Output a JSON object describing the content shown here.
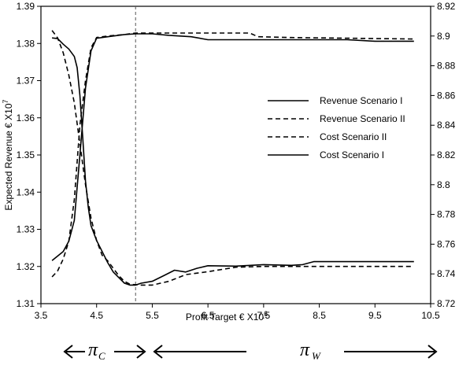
{
  "chart_data": {
    "type": "line",
    "xlabel": "Profit Target € X10",
    "xlabel_sup": "6",
    "ylabel": "Expected Revenue € X10",
    "ylabel_sup": "7",
    "xlim": [
      3.5,
      10.5
    ],
    "ylim_left": [
      1.31,
      1.39
    ],
    "ylim_right": [
      8.72,
      8.92
    ],
    "x_ticks": [
      "3.5",
      "4.5",
      "5.5",
      "6.5",
      "7.5",
      "8.5",
      "9.5",
      "10.5"
    ],
    "y_left_ticks": [
      "1.31",
      "1.32",
      "1.33",
      "1.34",
      "1.35",
      "1.36",
      "1.37",
      "1.38",
      "1.39"
    ],
    "y_right_ticks": [
      "8.72",
      "8.74",
      "8.76",
      "8.78",
      "8.8",
      "8.82",
      "8.84",
      "8.86",
      "8.88",
      "8.9",
      "8.92"
    ],
    "vline_x": 5.2,
    "grid": false,
    "legend_position": "right-middle",
    "region_labels": [
      {
        "symbol": "π",
        "sub": "C"
      },
      {
        "symbol": "π",
        "sub": "W"
      }
    ],
    "series": [
      {
        "name": "Revenue Scenario I",
        "axis": "left",
        "style": "solid",
        "points": [
          [
            3.7,
            1.3815
          ],
          [
            3.8,
            1.3813
          ],
          [
            3.9,
            1.3798
          ],
          [
            4.0,
            1.3785
          ],
          [
            4.1,
            1.3765
          ],
          [
            4.15,
            1.3735
          ],
          [
            4.2,
            1.366
          ],
          [
            4.25,
            1.355
          ],
          [
            4.3,
            1.343
          ],
          [
            4.35,
            1.336
          ],
          [
            4.4,
            1.331
          ],
          [
            4.5,
            1.327
          ],
          [
            4.6,
            1.324
          ],
          [
            4.7,
            1.321
          ],
          [
            4.8,
            1.3185
          ],
          [
            4.9,
            1.317
          ],
          [
            5.0,
            1.3155
          ],
          [
            5.1,
            1.315
          ],
          [
            5.2,
            1.315
          ],
          [
            5.3,
            1.3155
          ],
          [
            5.5,
            1.316
          ],
          [
            5.7,
            1.3175
          ],
          [
            5.9,
            1.319
          ],
          [
            6.1,
            1.3185
          ],
          [
            6.3,
            1.3195
          ],
          [
            6.5,
            1.3202
          ],
          [
            7.0,
            1.3201
          ],
          [
            7.5,
            1.3205
          ],
          [
            8.0,
            1.3203
          ],
          [
            8.2,
            1.3205
          ],
          [
            8.4,
            1.3213
          ],
          [
            9.0,
            1.3213
          ],
          [
            10.2,
            1.3213
          ]
        ]
      },
      {
        "name": "Revenue Scenario II",
        "axis": "left",
        "style": "dashed",
        "points": [
          [
            3.7,
            1.3835
          ],
          [
            3.8,
            1.3815
          ],
          [
            3.9,
            1.3775
          ],
          [
            4.0,
            1.3715
          ],
          [
            4.1,
            1.364
          ],
          [
            4.2,
            1.353
          ],
          [
            4.3,
            1.342
          ],
          [
            4.4,
            1.333
          ],
          [
            4.5,
            1.327
          ],
          [
            4.6,
            1.323
          ],
          [
            4.7,
            1.3215
          ],
          [
            4.8,
            1.3195
          ],
          [
            4.9,
            1.3175
          ],
          [
            5.0,
            1.316
          ],
          [
            5.1,
            1.3152
          ],
          [
            5.3,
            1.315
          ],
          [
            5.5,
            1.315
          ],
          [
            5.8,
            1.316
          ],
          [
            6.1,
            1.3178
          ],
          [
            6.5,
            1.3186
          ],
          [
            7.0,
            1.3198
          ],
          [
            7.5,
            1.32
          ],
          [
            10.2,
            1.32
          ]
        ]
      },
      {
        "name": "Cost Scenario II",
        "axis": "right",
        "style": "dashed",
        "points": [
          [
            3.7,
            8.738
          ],
          [
            3.8,
            8.742
          ],
          [
            3.9,
            8.75
          ],
          [
            4.0,
            8.762
          ],
          [
            4.1,
            8.79
          ],
          [
            4.2,
            8.84
          ],
          [
            4.3,
            8.87
          ],
          [
            4.4,
            8.892
          ],
          [
            4.5,
            8.899
          ],
          [
            4.7,
            8.9
          ],
          [
            5.0,
            8.901
          ],
          [
            5.2,
            8.902
          ],
          [
            6.0,
            8.902
          ],
          [
            7.0,
            8.902
          ],
          [
            7.25,
            8.902
          ],
          [
            7.4,
            8.8995
          ],
          [
            8.0,
            8.899
          ],
          [
            10.2,
            8.898
          ]
        ]
      },
      {
        "name": "Cost Scenario I",
        "axis": "right",
        "style": "solid",
        "points": [
          [
            3.7,
            8.749
          ],
          [
            3.8,
            8.752
          ],
          [
            3.9,
            8.755
          ],
          [
            4.0,
            8.762
          ],
          [
            4.1,
            8.776
          ],
          [
            4.2,
            8.82
          ],
          [
            4.3,
            8.865
          ],
          [
            4.4,
            8.89
          ],
          [
            4.5,
            8.8985
          ],
          [
            4.7,
            8.8995
          ],
          [
            5.0,
            8.901
          ],
          [
            5.2,
            8.9015
          ],
          [
            5.5,
            8.9015
          ],
          [
            5.8,
            8.9005
          ],
          [
            6.2,
            8.8995
          ],
          [
            6.5,
            8.8975
          ],
          [
            7.0,
            8.8975
          ],
          [
            8.0,
            8.8975
          ],
          [
            9.0,
            8.8975
          ],
          [
            9.5,
            8.8965
          ],
          [
            10.2,
            8.8965
          ]
        ]
      }
    ]
  }
}
